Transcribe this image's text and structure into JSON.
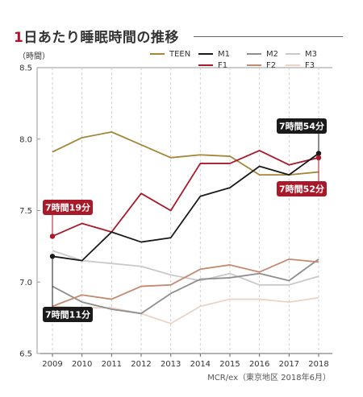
{
  "title": {
    "number": "1",
    "text": "日あたり睡眠時間の推移"
  },
  "source": "MCR/ex（東京地区 2018年6月）",
  "chart_data": {
    "type": "line",
    "ylabel": "（時間）",
    "xlabel": "",
    "ylim": [
      6.5,
      8.5
    ],
    "yticks": [
      "6.5",
      "7.0",
      "7.5",
      "8.0",
      "8.5"
    ],
    "x": [
      "2009",
      "2010",
      "2011",
      "2012",
      "2013",
      "2014",
      "2015",
      "2016",
      "2017",
      "2018"
    ],
    "grid": "vertical dashed",
    "legend": "top-right",
    "series": [
      {
        "name": "TEEN",
        "color": "#a5873a",
        "values": [
          7.91,
          8.01,
          8.05,
          7.96,
          7.87,
          7.89,
          7.88,
          7.75,
          7.75,
          7.77
        ]
      },
      {
        "name": "M1",
        "color": "#1a1a1a",
        "values": [
          7.18,
          7.15,
          7.35,
          7.28,
          7.31,
          7.6,
          7.66,
          7.81,
          7.75,
          7.9
        ]
      },
      {
        "name": "M2",
        "color": "#8e8e8e",
        "values": [
          6.97,
          6.86,
          6.81,
          6.78,
          6.92,
          7.02,
          7.03,
          7.06,
          7.01,
          7.16
        ]
      },
      {
        "name": "M3",
        "color": "#c9c9c9",
        "values": [
          7.22,
          7.15,
          7.13,
          7.11,
          7.05,
          7.01,
          7.06,
          6.98,
          6.98,
          7.04
        ]
      },
      {
        "name": "F1",
        "color": "#a81a2a",
        "values": [
          7.32,
          7.41,
          7.35,
          7.62,
          7.5,
          7.83,
          7.83,
          7.92,
          7.82,
          7.87
        ]
      },
      {
        "name": "F2",
        "color": "#c48a70",
        "values": [
          6.83,
          6.91,
          6.88,
          6.97,
          6.98,
          7.09,
          7.12,
          7.07,
          7.16,
          7.14
        ]
      },
      {
        "name": "F3",
        "color": "#ecd3c6",
        "values": [
          6.83,
          6.82,
          6.82,
          6.78,
          6.71,
          6.83,
          6.88,
          6.88,
          6.86,
          6.89
        ]
      }
    ],
    "annotations": [
      {
        "text": "7時間54分",
        "series": "M1",
        "x": "2018",
        "y": 7.9,
        "bg": "#1a1a1a",
        "side": "above-left"
      },
      {
        "text": "7時間52分",
        "series": "F1",
        "x": "2018",
        "y": 7.87,
        "bg": "#a81a2a",
        "side": "below-left"
      },
      {
        "text": "7時間19分",
        "series": "F1",
        "x": "2009",
        "y": 7.32,
        "bg": "#a81a2a",
        "side": "above"
      },
      {
        "text": "7時間11分",
        "series": "M1",
        "x": "2009",
        "y": 7.18,
        "bg": "#1a1a1a",
        "side": "below"
      }
    ]
  }
}
